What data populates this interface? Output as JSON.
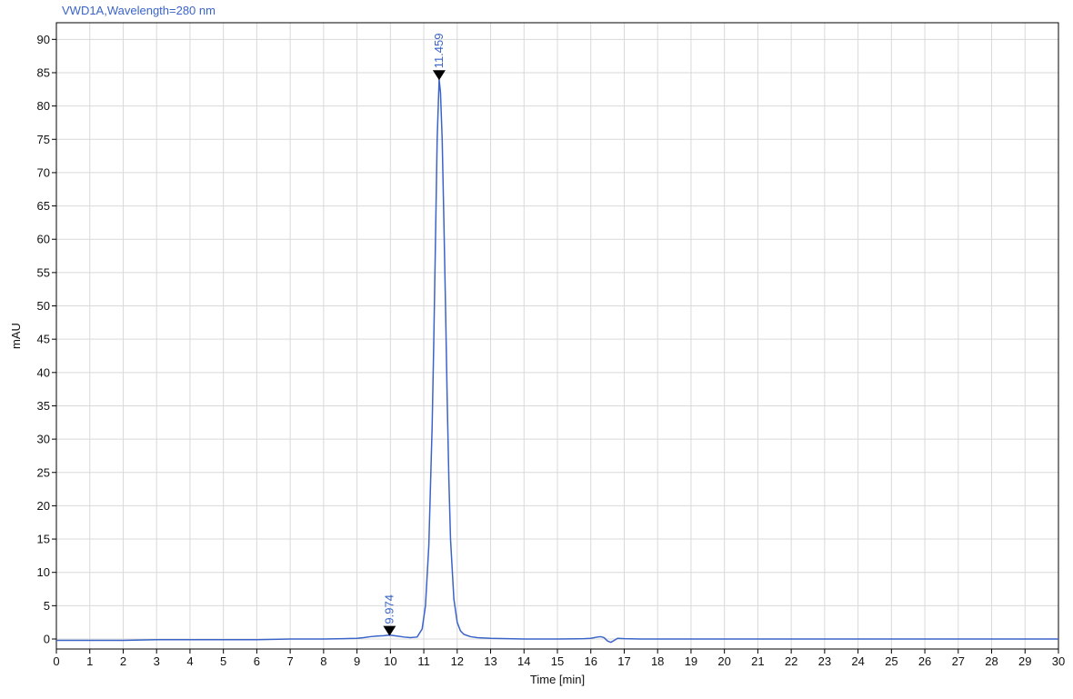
{
  "chart_data": {
    "type": "line",
    "title": "VWD1A,Wavelength=280 nm",
    "xlabel": "Time [min]",
    "ylabel": "mAU",
    "xlim": [
      0,
      30
    ],
    "ylim": [
      -1.5,
      92.5
    ],
    "x_ticks": [
      0,
      1,
      2,
      3,
      4,
      5,
      6,
      7,
      8,
      9,
      10,
      11,
      12,
      13,
      14,
      15,
      16,
      17,
      18,
      19,
      20,
      21,
      22,
      23,
      24,
      25,
      26,
      27,
      28,
      29,
      30
    ],
    "y_ticks": [
      0,
      5,
      10,
      15,
      20,
      25,
      30,
      35,
      40,
      45,
      50,
      55,
      60,
      65,
      70,
      75,
      80,
      85,
      90
    ],
    "grid": true,
    "legend": "none",
    "colors": {
      "trace": "#3b64c8",
      "grid": "#d9d9d9",
      "marker": "#000000"
    },
    "peaks": [
      {
        "label": "9.974",
        "x": 9.974,
        "y": 0.6
      },
      {
        "label": "11.459",
        "x": 11.459,
        "y": 84.0
      }
    ],
    "series": [
      {
        "x": [
          0,
          1,
          2,
          3,
          4,
          5,
          6,
          7,
          8,
          8.6,
          9.0,
          9.2,
          9.4,
          9.6,
          9.8,
          9.974,
          10.2,
          10.4,
          10.6,
          10.8,
          10.95,
          11.05,
          11.15,
          11.25,
          11.3,
          11.35,
          11.4,
          11.459,
          11.5,
          11.55,
          11.6,
          11.65,
          11.7,
          11.75,
          11.8,
          11.9,
          12.0,
          12.1,
          12.2,
          12.4,
          12.6,
          13.0,
          13.5,
          14,
          15,
          15.8,
          16.0,
          16.2,
          16.3,
          16.4,
          16.5,
          16.6,
          16.7,
          16.8,
          17.0,
          17.5,
          18,
          19,
          20,
          21,
          22,
          23,
          24,
          25,
          26,
          27,
          28,
          29,
          30
        ],
        "y": [
          -0.2,
          -0.2,
          -0.2,
          -0.1,
          -0.1,
          -0.1,
          -0.1,
          0.0,
          0.0,
          0.05,
          0.1,
          0.2,
          0.35,
          0.45,
          0.5,
          0.6,
          0.45,
          0.3,
          0.2,
          0.3,
          1.5,
          5.0,
          14.0,
          32.0,
          45.0,
          60.0,
          75.0,
          84.0,
          82.0,
          75.0,
          63.0,
          50.0,
          36.0,
          24.0,
          15.0,
          6.0,
          2.5,
          1.2,
          0.7,
          0.35,
          0.2,
          0.1,
          0.05,
          0.0,
          0.0,
          0.05,
          0.1,
          0.3,
          0.35,
          0.2,
          -0.3,
          -0.5,
          -0.2,
          0.1,
          0.05,
          0.0,
          0.0,
          0.0,
          0.0,
          0.0,
          0.0,
          0.0,
          0.0,
          0.0,
          0.0,
          0.0,
          0.0,
          0.0,
          0.0
        ]
      }
    ]
  }
}
